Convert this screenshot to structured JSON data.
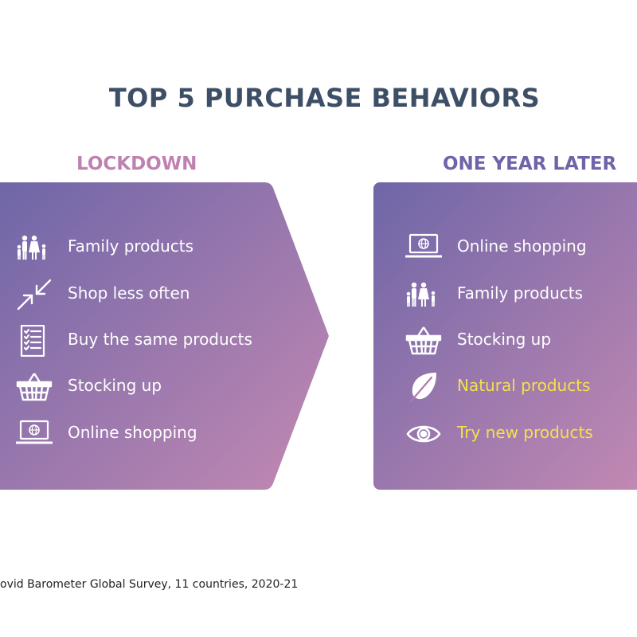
{
  "title": "TOP 5 PURCHASE BEHAVIORS",
  "colors": {
    "title": "#3d4f66",
    "lockdown_heading": "#bf82b0",
    "later_heading": "#6e64a8",
    "grad_start": "#6f66a8",
    "grad_end": "#c389b2",
    "highlight": "#f4e14b",
    "text": "#ffffff"
  },
  "lockdown": {
    "heading": "LOCKDOWN",
    "items": [
      {
        "icon": "family-icon",
        "label": "Family products"
      },
      {
        "icon": "shrink-arrows-icon",
        "label": "Shop less often"
      },
      {
        "icon": "checklist-icon",
        "label": "Buy the same products"
      },
      {
        "icon": "basket-icon",
        "label": "Stocking up"
      },
      {
        "icon": "laptop-icon",
        "label": "Online shopping"
      }
    ]
  },
  "later": {
    "heading": "ONE YEAR LATER",
    "items": [
      {
        "icon": "laptop-icon",
        "label": "Online shopping",
        "highlight": false
      },
      {
        "icon": "family-icon",
        "label": "Family products",
        "highlight": false
      },
      {
        "icon": "basket-icon",
        "label": "Stocking up",
        "highlight": false
      },
      {
        "icon": "leaf-icon",
        "label": "Natural products",
        "highlight": true
      },
      {
        "icon": "eye-icon",
        "label": "Try new products",
        "highlight": true
      }
    ]
  },
  "footer": "ovid Barometer Global Survey, 11 countries, 2020-21"
}
